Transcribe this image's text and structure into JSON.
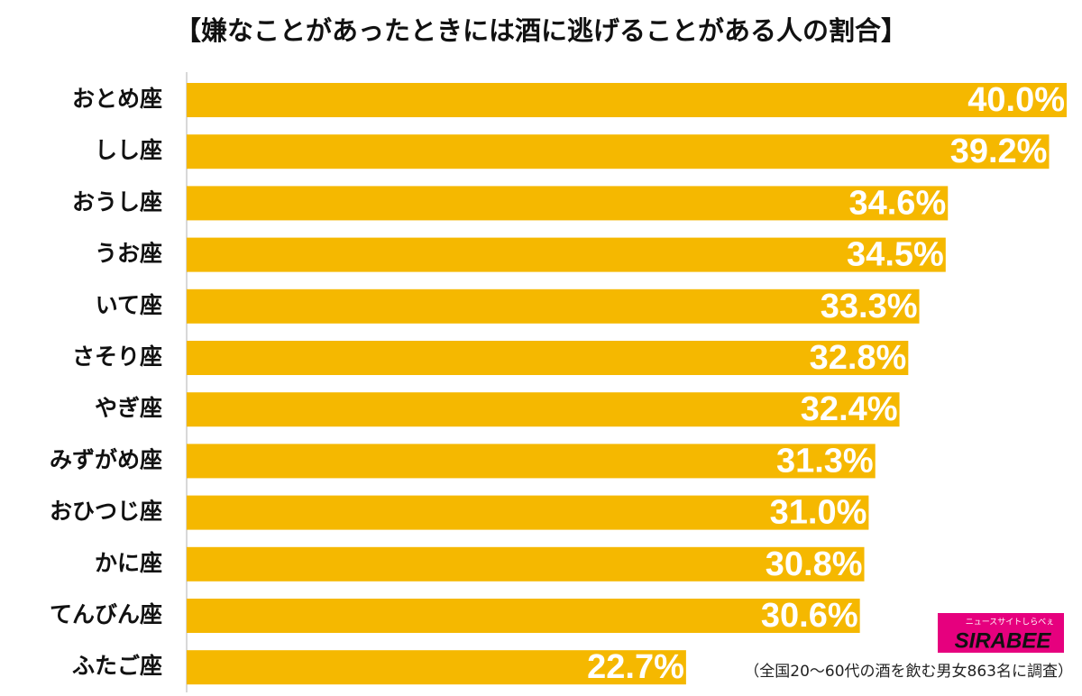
{
  "chart_data": {
    "type": "bar",
    "orientation": "horizontal",
    "title": "【嫌なことがあったときには酒に逃げることがある人の割合】",
    "categories": [
      "おとめ座",
      "しし座",
      "おうし座",
      "うお座",
      "いて座",
      "さそり座",
      "やぎ座",
      "みずがめ座",
      "おひつじ座",
      "かに座",
      "てんびん座",
      "ふたご座"
    ],
    "values": [
      40.0,
      39.2,
      34.6,
      34.5,
      33.3,
      32.8,
      32.4,
      31.3,
      31.0,
      30.8,
      30.6,
      22.7
    ],
    "value_labels": [
      "40.0%",
      "39.2%",
      "34.6%",
      "34.5%",
      "33.3%",
      "32.8%",
      "32.4%",
      "31.3%",
      "31.0%",
      "30.8%",
      "30.6%",
      "22.7%"
    ],
    "color": "#f5b800",
    "xlim": [
      0,
      40
    ],
    "note": "（全国20〜60代の酒を飲む男女863名に調査）",
    "logo": "SIRABEE",
    "logo_subtitle": "ニュースサイトしらべぇ"
  }
}
